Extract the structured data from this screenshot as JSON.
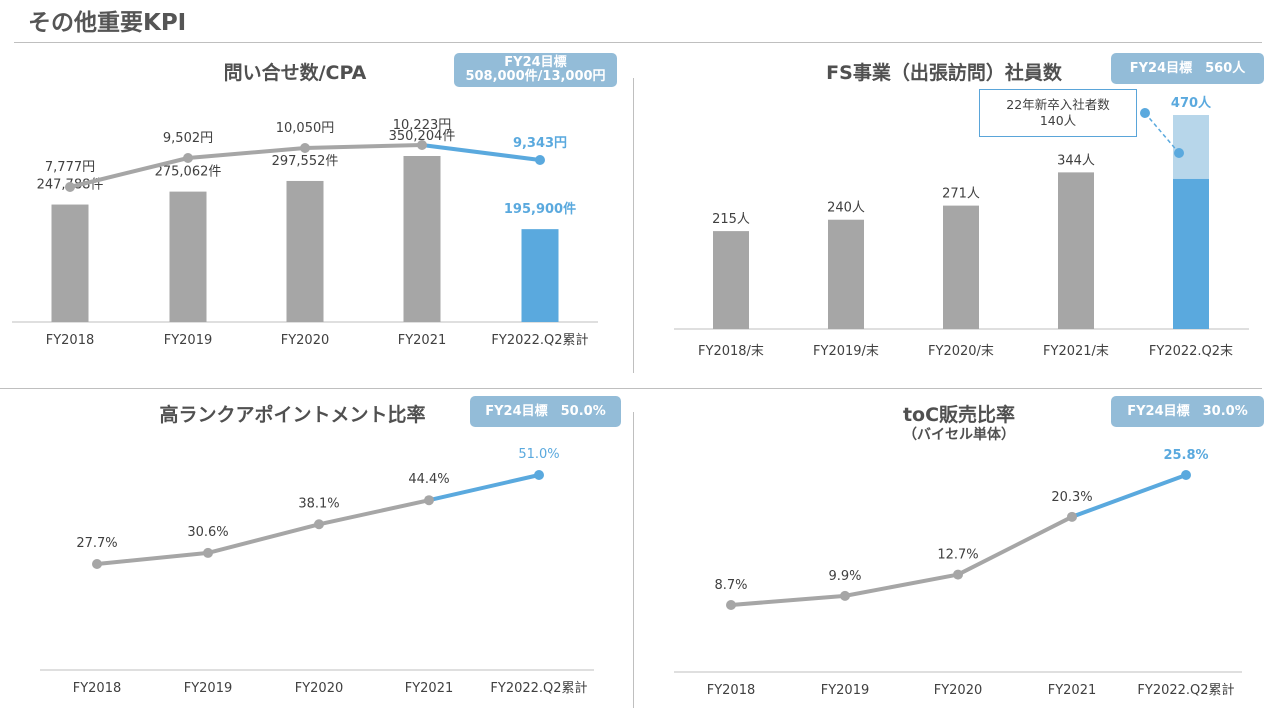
{
  "page": {
    "title": "その他重要KPI"
  },
  "colors": {
    "gray": "#a6a6a6",
    "blue": "#5aa9de",
    "light_blue": "#b7d6ea",
    "badge": "#93bcd8",
    "text": "#404040"
  },
  "chart_data": [
    {
      "id": "inquiries",
      "type": "bar+line",
      "title": "問い合せ数/CPA",
      "target_badge": [
        "FY24目標",
        "508,000件/13,000円"
      ],
      "categories": [
        "FY2018",
        "FY2019",
        "FY2020",
        "FY2021",
        "FY2022.Q2累計"
      ],
      "bars": {
        "values": [
          247788,
          275062,
          297552,
          350204,
          195900
        ],
        "labels": [
          "247,788件",
          "275,062件",
          "297,552件",
          "350,204件",
          "195,900件"
        ]
      },
      "line": {
        "values": [
          7777,
          9502,
          10050,
          10223,
          9343
        ],
        "labels": [
          "7,777円",
          "9,502円",
          "10,050円",
          "10,223円",
          "9,343円"
        ]
      },
      "highlight_index": 4
    },
    {
      "id": "fs_employees",
      "type": "stacked_bar",
      "title": "FS事業（出張訪問）社員数",
      "target_badge": [
        "FY24目標　560人"
      ],
      "categories": [
        "FY2018/末",
        "FY2019/末",
        "FY2020/末",
        "FY2021/末",
        "FY2022.Q2末"
      ],
      "values": [
        215,
        240,
        271,
        344,
        470
      ],
      "labels": [
        "215人",
        "240人",
        "271人",
        "344人",
        "470人"
      ],
      "new_grad_segment": 140,
      "callout": [
        "22年新卒入社者数",
        "140人"
      ],
      "highlight_index": 4
    },
    {
      "id": "high_rank",
      "type": "line",
      "title": "高ランクアポイントメント比率",
      "target_badge": [
        "FY24目標　50.0%"
      ],
      "categories": [
        "FY2018",
        "FY2019",
        "FY2020",
        "FY2021",
        "FY2022.Q2累計"
      ],
      "values": [
        27.7,
        30.6,
        38.1,
        44.4,
        51.0
      ],
      "labels": [
        "27.7%",
        "30.6%",
        "38.1%",
        "44.4%",
        "51.0%"
      ],
      "highlight_index": 4
    },
    {
      "id": "toc_sales",
      "type": "line",
      "title": "toC販売比率",
      "subtitle": "（バイセル単体）",
      "target_badge": [
        "FY24目標　30.0%"
      ],
      "categories": [
        "FY2018",
        "FY2019",
        "FY2020",
        "FY2021",
        "FY2022.Q2累計"
      ],
      "values": [
        8.7,
        9.9,
        12.7,
        20.3,
        25.8
      ],
      "labels": [
        "8.7%",
        "9.9%",
        "12.7%",
        "20.3%",
        "25.8%"
      ],
      "highlight_index": 4
    }
  ]
}
